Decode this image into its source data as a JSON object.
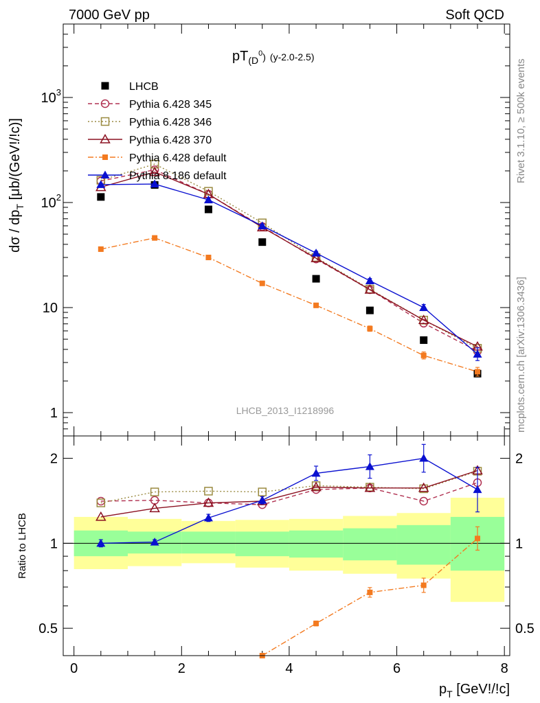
{
  "header": {
    "left": "7000 GeV pp",
    "right": "Soft QCD"
  },
  "side_text": {
    "rivet": "Rivet 3.1.10, ≥ 500k events",
    "mcplots": "mcplots.cern.ch [arXiv:1306.3436]"
  },
  "chart_data": [
    {
      "type": "scatter",
      "title_main": "pT",
      "title_sub": "(D",
      "title_sup": "0",
      "title_close": ")",
      "title_range": "(y-2.0-2.5)",
      "ylabel_main": "dσ / dp",
      "ylabel_sub": "T",
      "ylabel_rest": " [μb/(GeV!/!c)]",
      "yscale": "log",
      "ylim": [
        0.6,
        5000
      ],
      "xlim": [
        -0.2,
        8.1
      ],
      "y_ticks": [
        {
          "v": 1,
          "label": "1"
        },
        {
          "v": 10,
          "label": "10"
        },
        {
          "v": 100,
          "label": "10",
          "sup": "2"
        },
        {
          "v": 1000,
          "label": "10",
          "sup": "3"
        }
      ],
      "watermark": "LHCB_2013_I1218996",
      "series": [
        {
          "name": "LHCB",
          "color": "#000000",
          "marker": "square-filled",
          "line": "none",
          "x": [
            0.5,
            1.5,
            2.5,
            3.5,
            4.5,
            5.5,
            6.5,
            7.5
          ],
          "y": [
            113,
            147,
            86,
            42,
            18.8,
            9.4,
            4.9,
            2.35
          ]
        },
        {
          "name": "Pythia 6.428 345",
          "color": "#b03050",
          "marker": "circle-open",
          "line": "dashed",
          "x": [
            0.5,
            1.5,
            2.5,
            3.5,
            4.5,
            5.5,
            6.5,
            7.5
          ],
          "y": [
            160,
            205,
            120,
            59,
            29,
            14.8,
            7.1,
            3.85
          ]
        },
        {
          "name": "Pythia 6.428 346",
          "color": "#9a8a40",
          "marker": "square-open",
          "line": "dotted",
          "x": [
            0.5,
            1.5,
            2.5,
            3.5,
            4.5,
            5.5,
            6.5,
            7.5
          ],
          "y": [
            163,
            232,
            128,
            64,
            30,
            15.0,
            7.6,
            4.1
          ]
        },
        {
          "name": "Pythia 6.428 370",
          "color": "#8b1020",
          "marker": "triangle-open",
          "line": "solid",
          "x": [
            0.5,
            1.5,
            2.5,
            3.5,
            4.5,
            5.5,
            6.5,
            7.5
          ],
          "y": [
            140,
            195,
            120,
            58,
            29.5,
            14.8,
            7.6,
            4.25
          ]
        },
        {
          "name": "Pythia 6.428 default",
          "color": "#f37a20",
          "marker": "square-filled-small",
          "line": "dashdot",
          "x": [
            0.5,
            1.5,
            2.5,
            3.5,
            4.5,
            5.5,
            6.5,
            7.5
          ],
          "y": [
            36,
            46,
            30,
            17,
            10.5,
            6.3,
            3.5,
            2.45
          ],
          "err": [
            0.05,
            0.05,
            0.05,
            0.05,
            0.05,
            0.06,
            0.08,
            0.1
          ]
        },
        {
          "name": "Pythia 8.186 default",
          "color": "#0a10d0",
          "marker": "triangle-filled",
          "line": "solid",
          "x": [
            0.5,
            1.5,
            2.5,
            3.5,
            4.5,
            5.5,
            6.5,
            7.5
          ],
          "y": [
            148,
            150,
            106,
            60,
            33,
            18,
            10.0,
            3.6
          ],
          "err": [
            0.03,
            0.03,
            0.04,
            0.04,
            0.04,
            0.05,
            0.07,
            0.15
          ]
        }
      ]
    },
    {
      "type": "scatter",
      "ylabel": "Ratio to LHCB",
      "yscale": "log",
      "ylim": [
        0.4,
        2.4
      ],
      "xlim": [
        -0.2,
        8.1
      ],
      "xlabel_main": "p",
      "xlabel_sub": "T",
      "xlabel_rest": " [GeV!/!c]",
      "x_ticks": [
        0,
        2,
        4,
        6,
        8
      ],
      "y_ticks": [
        {
          "v": 0.5,
          "label": "0.5"
        },
        {
          "v": 1,
          "label": "1"
        },
        {
          "v": 2,
          "label": "2"
        }
      ],
      "bands": {
        "bins": [
          [
            0,
            1
          ],
          [
            1,
            2
          ],
          [
            2,
            3
          ],
          [
            3,
            4
          ],
          [
            4,
            5
          ],
          [
            5,
            6
          ],
          [
            6,
            7
          ],
          [
            7,
            8
          ]
        ],
        "green_lo": [
          0.9,
          0.92,
          0.92,
          0.9,
          0.89,
          0.87,
          0.84,
          0.8
        ],
        "green_hi": [
          1.11,
          1.1,
          1.1,
          1.1,
          1.11,
          1.13,
          1.16,
          1.24
        ],
        "yellow_lo": [
          0.81,
          0.83,
          0.85,
          0.82,
          0.8,
          0.78,
          0.75,
          0.62
        ],
        "yellow_hi": [
          1.24,
          1.22,
          1.2,
          1.21,
          1.22,
          1.25,
          1.28,
          1.45
        ]
      },
      "series": [
        {
          "name": "Pythia 6.428 345",
          "color": "#b03050",
          "marker": "circle-open",
          "line": "dashed",
          "x": [
            0.5,
            1.5,
            2.5,
            3.5,
            4.5,
            5.5,
            6.5,
            7.5
          ],
          "y": [
            1.41,
            1.42,
            1.39,
            1.37,
            1.55,
            1.57,
            1.41,
            1.64
          ]
        },
        {
          "name": "Pythia 6.428 346",
          "color": "#9a8a40",
          "marker": "square-open",
          "line": "dotted",
          "x": [
            0.5,
            1.5,
            2.5,
            3.5,
            4.5,
            5.5,
            6.5,
            7.5
          ],
          "y": [
            1.39,
            1.52,
            1.53,
            1.52,
            1.6,
            1.58,
            1.56,
            1.8
          ]
        },
        {
          "name": "Pythia 6.428 370",
          "color": "#8b1020",
          "marker": "triangle-open",
          "line": "solid",
          "x": [
            0.5,
            1.5,
            2.5,
            3.5,
            4.5,
            5.5,
            6.5,
            7.5
          ],
          "y": [
            1.24,
            1.33,
            1.39,
            1.41,
            1.58,
            1.57,
            1.57,
            1.81
          ]
        },
        {
          "name": "Pythia 6.428 default",
          "color": "#f37a20",
          "marker": "square-filled-small",
          "line": "dashdot",
          "x": [
            3.5,
            4.5,
            5.5,
            6.5,
            7.5
          ],
          "y": [
            0.4,
            0.52,
            0.67,
            0.71,
            1.04
          ],
          "err": [
            0.01,
            0.02,
            0.04,
            0.06,
            0.1
          ]
        },
        {
          "name": "Pythia 8.186 default",
          "color": "#0a10d0",
          "marker": "triangle-filled",
          "line": "solid",
          "x": [
            0.5,
            1.5,
            2.5,
            3.5,
            4.5,
            5.5,
            6.5,
            7.5
          ],
          "y": [
            1.0,
            1.01,
            1.23,
            1.42,
            1.77,
            1.87,
            2.0,
            1.55
          ],
          "err": [
            0.03,
            0.02,
            0.03,
            0.03,
            0.06,
            0.1,
            0.12,
            0.2
          ]
        }
      ]
    }
  ]
}
